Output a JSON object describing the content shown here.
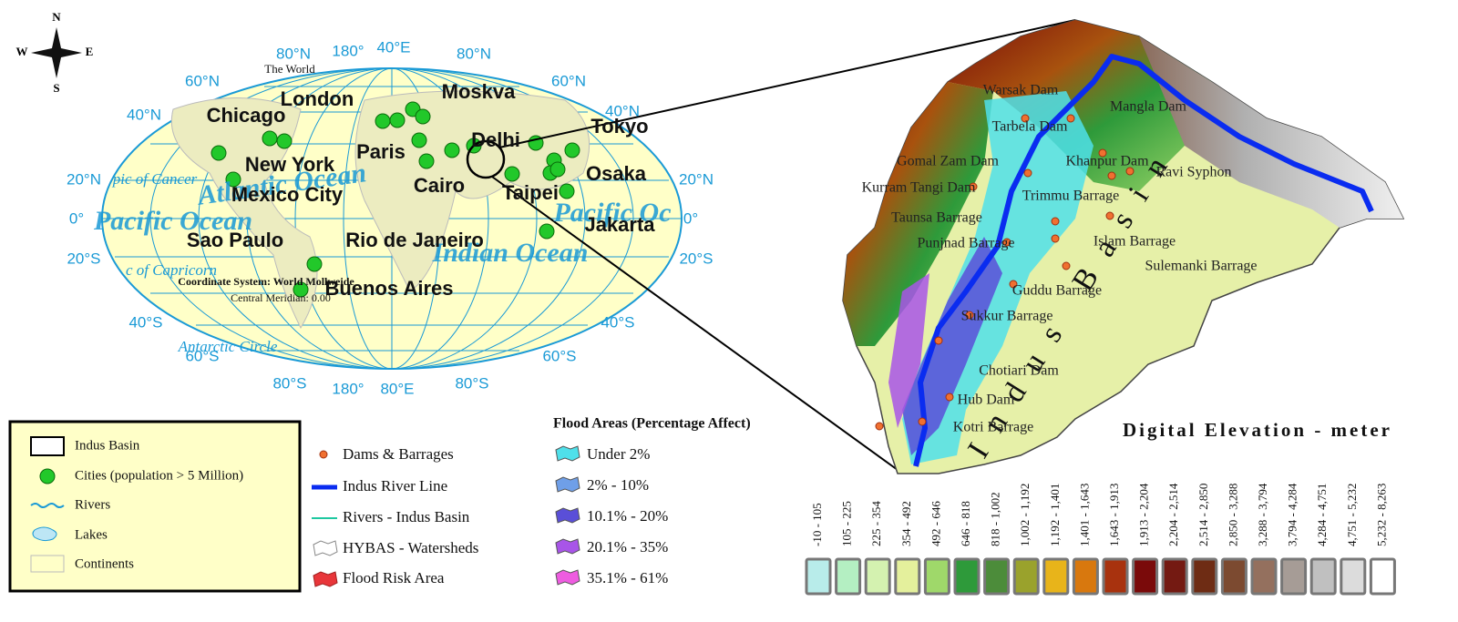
{
  "compass": {
    "north": "N",
    "south": "S",
    "west": "W",
    "east": "E"
  },
  "world_map": {
    "title": "The World",
    "graticule_labels": [
      "80°N",
      "180°",
      "40°E",
      "80°N",
      "60°N",
      "60°N",
      "40°N",
      "40°N",
      "20°N",
      "20°N",
      "0°",
      "0°",
      "20°S",
      "20°S",
      "40°S",
      "40°S",
      "60°S",
      "60°S",
      "80°S",
      "180°",
      "80°E",
      "80°S"
    ],
    "oceans": [
      "Atlantic Ocean",
      "Pacific Ocean",
      "Pacific Oc",
      "Indian Ocean"
    ],
    "circles": [
      "pic of Cancer",
      "c of Capricorn",
      "Antarctic Circle"
    ],
    "cities": [
      "Chicago",
      "London",
      "Moskva",
      "Tokyo",
      "Paris",
      "Delhi",
      "New York",
      "Osaka",
      "Mexico City",
      "Cairo",
      "Taipei",
      "Jakarta",
      "Sao Paulo",
      "Rio de Janeiro",
      "Buenos Aires"
    ],
    "coordinate_system": "Coordinate System: World Mollweide",
    "central_meridian": "Central Meridian: 0.00"
  },
  "legend_box": [
    "Indus Basin",
    "Cities (population > 5 Million)",
    "Rivers",
    "Lakes",
    "Continents"
  ],
  "layer_legend": [
    "Dams & Barrages",
    "Indus River Line",
    "Rivers - Indus Basin",
    "HYBAS - Watersheds",
    "Flood Risk Area"
  ],
  "flood_areas": {
    "title": "Flood Areas (Percentage Affect)",
    "classes": [
      {
        "label": "Under 2%",
        "color": "#4fe0ea"
      },
      {
        "label": "2% - 10%",
        "color": "#6f9fe8"
      },
      {
        "label": "10.1% - 20%",
        "color": "#5a4fd8"
      },
      {
        "label": "20.1% - 35%",
        "color": "#a855e8"
      },
      {
        "label": "35.1% - 61%",
        "color": "#ee5ce0"
      }
    ]
  },
  "elevation": {
    "title": "Digital Elevation - meter",
    "classes": [
      {
        "label": "-10 - 105",
        "color": "#b8ecea"
      },
      {
        "label": "105 - 225",
        "color": "#b4efc2"
      },
      {
        "label": "225 - 354",
        "color": "#d4f2b0"
      },
      {
        "label": "354 - 492",
        "color": "#e4f09c"
      },
      {
        "label": "492 - 646",
        "color": "#9fd86a"
      },
      {
        "label": "646 - 818",
        "color": "#2e9a3a"
      },
      {
        "label": "818 - 1,002",
        "color": "#4c8c3a"
      },
      {
        "label": "1,002 - 1,192",
        "color": "#9aa22c"
      },
      {
        "label": "1,192 - 1,401",
        "color": "#e8b41a"
      },
      {
        "label": "1,401 - 1,643",
        "color": "#d8780e"
      },
      {
        "label": "1,643 - 1,913",
        "color": "#a8320e"
      },
      {
        "label": "1,913 - 2,204",
        "color": "#7a0a0a"
      },
      {
        "label": "2,204 - 2,514",
        "color": "#741a12"
      },
      {
        "label": "2,514 - 2,850",
        "color": "#6e2c14"
      },
      {
        "label": "2,850 - 3,288",
        "color": "#7c4a30"
      },
      {
        "label": "3,288 - 3,794",
        "color": "#94705e"
      },
      {
        "label": "3,794 - 4,284",
        "color": "#a69c96"
      },
      {
        "label": "4,284 - 4,751",
        "color": "#c0c0c0"
      },
      {
        "label": "4,751 - 5,232",
        "color": "#dcdcdc"
      },
      {
        "label": "5,232 - 8,263",
        "color": "#ffffff"
      }
    ]
  },
  "basin_map": {
    "title": "Indus Basin",
    "sites": [
      "Warsak Dam",
      "Mangla Dam",
      "Tarbela Dam",
      "Gomal Zam Dam",
      "Khanpur Dam",
      "Ravi Syphon",
      "Kurram Tangi Dam",
      "Trimmu Barrage",
      "Taunsa Barrage",
      "Punjnad Barrage",
      "Islam Barrage",
      "Sulemanki Barrage",
      "Guddu Barrage",
      "Sukkur Barrage",
      "Chotiari Dam",
      "Hub Dam",
      "Kotri Barrage"
    ]
  }
}
